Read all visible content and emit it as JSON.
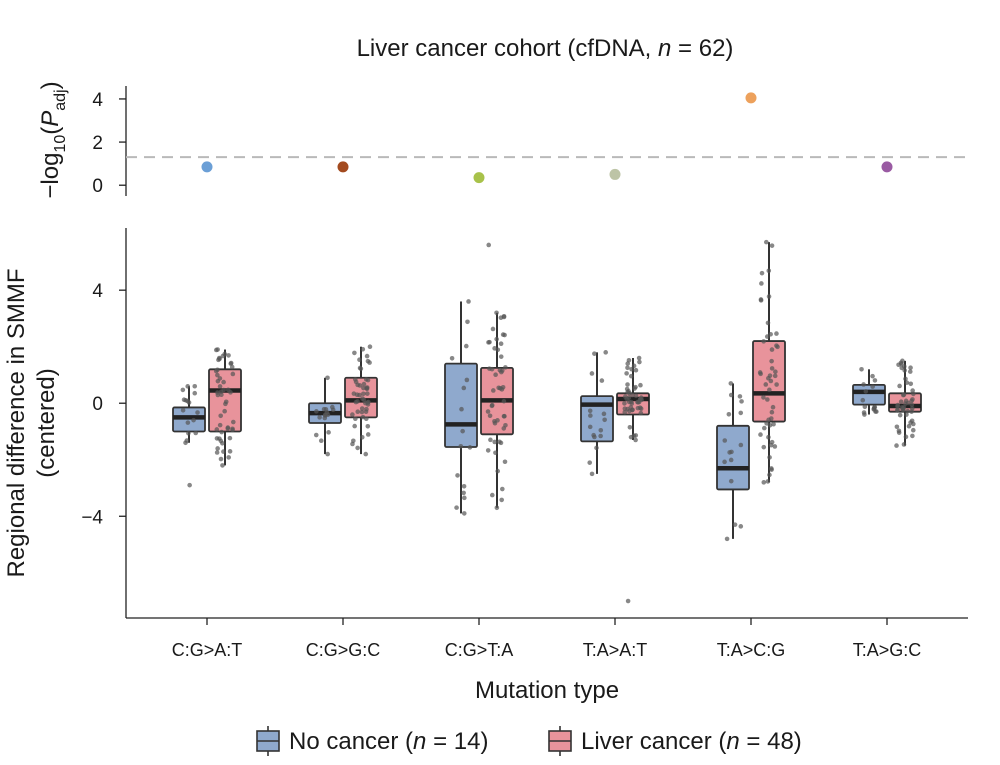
{
  "chart_data": [
    {
      "type": "scatter",
      "title_prefix": "Liver cancer cohort (cfDNA, ",
      "title_n": "n",
      "title_suffix": " = 62)",
      "ylabel": "−log10(Padj)",
      "ylabel_parts": {
        "pre": "−log",
        "sub1": "10",
        "mid": "(",
        "italic": "P",
        "sub2": "adj",
        "post": ")"
      },
      "ylim": [
        -0.5,
        4.6
      ],
      "yticks": [
        0,
        2,
        4
      ],
      "threshold": 1.3,
      "categories": [
        "C:G>A:T",
        "C:G>G:C",
        "C:G>T:A",
        "T:A>A:T",
        "T:A>C:G",
        "T:A>G:C"
      ],
      "values": [
        0.85,
        0.85,
        0.35,
        0.5,
        4.05,
        0.85
      ],
      "colors": [
        "#6b9fd6",
        "#a34a1f",
        "#a8c24a",
        "#bdc4a6",
        "#eda15c",
        "#9a5ba3"
      ]
    },
    {
      "type": "box",
      "xlabel": "Mutation type",
      "ylabel_line1": "Regional difference in SMMF",
      "ylabel_line2": "(centered)",
      "ylim": [
        -7.6,
        6.2
      ],
      "yticks": [
        -4,
        0,
        4
      ],
      "ytick_labels": [
        "−4",
        "0",
        "4"
      ],
      "categories": [
        "C:G>A:T",
        "C:G>G:C",
        "C:G>T:A",
        "T:A>A:T",
        "T:A>C:G",
        "T:A>G:C"
      ],
      "series": [
        {
          "name": "No cancer",
          "n": 14,
          "color": "#8fa9cd",
          "boxes": [
            {
              "min": -1.4,
              "q1": -1.0,
              "median": -0.5,
              "q3": -0.15,
              "max": 0.6,
              "outliers": [
                -2.9
              ]
            },
            {
              "min": -1.8,
              "q1": -0.7,
              "median": -0.35,
              "q3": 0.0,
              "max": 0.9,
              "outliers": []
            },
            {
              "min": -3.9,
              "q1": -1.55,
              "median": -0.75,
              "q3": 1.4,
              "max": 3.6,
              "outliers": []
            },
            {
              "min": -2.5,
              "q1": -1.35,
              "median": -0.05,
              "q3": 0.25,
              "max": 1.8,
              "outliers": []
            },
            {
              "min": -4.8,
              "q1": -3.05,
              "median": -2.3,
              "q3": -0.8,
              "max": 0.7,
              "outliers": []
            },
            {
              "min": -0.4,
              "q1": -0.05,
              "median": 0.4,
              "q3": 0.65,
              "max": 1.2,
              "outliers": []
            }
          ]
        },
        {
          "name": "Liver cancer",
          "n": 48,
          "color": "#e8939b",
          "boxes": [
            {
              "min": -2.2,
              "q1": -1.0,
              "median": 0.45,
              "q3": 1.2,
              "max": 1.9,
              "outliers": []
            },
            {
              "min": -1.8,
              "q1": -0.5,
              "median": 0.1,
              "q3": 0.9,
              "max": 2.0,
              "outliers": []
            },
            {
              "min": -3.7,
              "q1": -1.1,
              "median": 0.1,
              "q3": 1.25,
              "max": 3.2,
              "outliers": [
                5.6
              ]
            },
            {
              "min": -1.3,
              "q1": -0.4,
              "median": 0.15,
              "q3": 0.35,
              "max": 1.6,
              "outliers": [
                -7.0
              ]
            },
            {
              "min": -2.8,
              "q1": -0.65,
              "median": 0.35,
              "q3": 2.2,
              "max": 5.7,
              "outliers": []
            },
            {
              "min": -1.5,
              "q1": -0.3,
              "median": -0.1,
              "q3": 0.35,
              "max": 1.5,
              "outliers": []
            }
          ]
        }
      ]
    }
  ],
  "legend": {
    "no_cancer_prefix": "No cancer (",
    "no_cancer_suffix": " = 14)",
    "liver_cancer_prefix": "Liver cancer (",
    "liver_cancer_suffix": " = 48)",
    "n_symbol": "n"
  }
}
